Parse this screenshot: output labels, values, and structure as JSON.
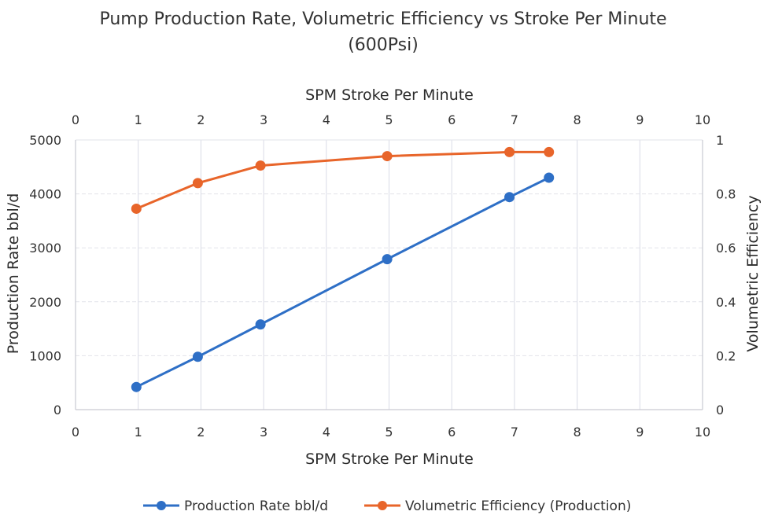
{
  "chart_data": {
    "type": "line",
    "title": "Pump Production Rate, Volumetric Efficiency vs Stroke Per Minute",
    "subtitle": "(600Psi)",
    "xlabel": "SPM Stroke Per Minute",
    "x2label": "SPM Stroke Per Minute",
    "ylabel": "Production Rate bbl/d",
    "y2label": "Volumetric Efficiency",
    "xlim": [
      0,
      10
    ],
    "ylim": [
      0,
      5000
    ],
    "y2lim": [
      0,
      1
    ],
    "x_tick_labels": [
      "0",
      "1",
      "2",
      "3",
      "4",
      "5",
      "6",
      "7",
      "8",
      "9",
      "10"
    ],
    "y_ticks": [
      "0",
      "1000",
      "2000",
      "3000",
      "4000",
      "5000"
    ],
    "y2_ticks": [
      "0",
      "0.2",
      "0.4",
      "0.6",
      "0.8",
      "1"
    ],
    "grid": true,
    "legend_position": "bottom",
    "series": [
      {
        "name": "Production Rate bbl/d",
        "axis": "left",
        "color": "#2E6FC6",
        "x": [
          0.97,
          1.95,
          2.95,
          4.97,
          6.92,
          7.55
        ],
        "values": [
          420,
          980,
          1580,
          2790,
          3940,
          4300
        ]
      },
      {
        "name": "Volumetric Efficiency (Production)",
        "axis": "right",
        "color": "#E8652A",
        "x": [
          0.97,
          1.95,
          2.95,
          4.97,
          6.92,
          7.55
        ],
        "values": [
          0.745,
          0.84,
          0.905,
          0.94,
          0.955,
          0.955
        ]
      }
    ]
  }
}
